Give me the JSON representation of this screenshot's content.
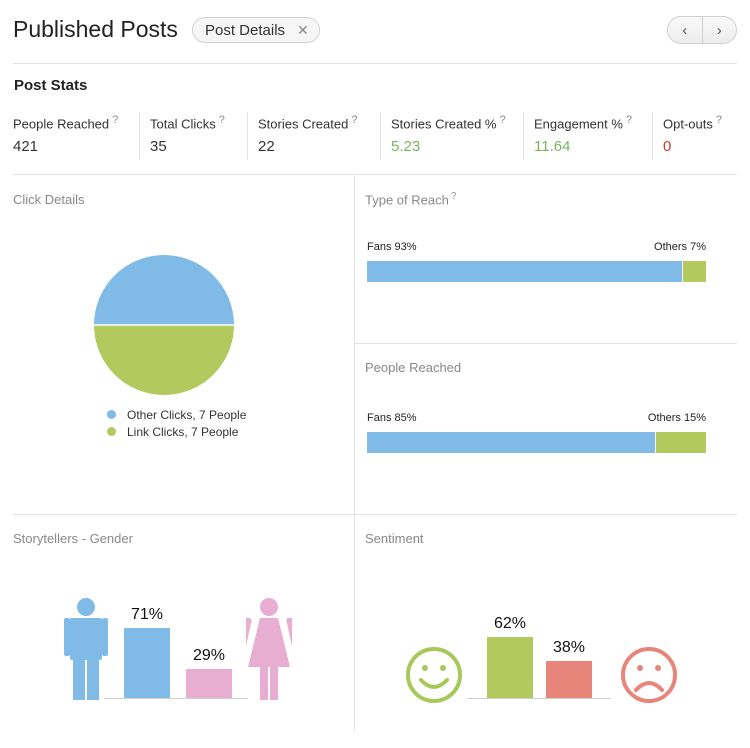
{
  "header": {
    "title": "Published Posts",
    "tag_label": "Post Details",
    "tag_close": "✕",
    "prev": "‹",
    "next": "›"
  },
  "stats": {
    "title": "Post Stats",
    "items": [
      {
        "label": "People Reached",
        "help": "?",
        "value": "421",
        "color": "#333333"
      },
      {
        "label": "Total Clicks",
        "help": "?",
        "value": "35",
        "color": "#333333"
      },
      {
        "label": "Stories Created",
        "help": "?",
        "value": "22",
        "color": "#333333"
      },
      {
        "label": "Stories Created %",
        "help": "?",
        "value": "5.23",
        "color": "#7ab55c"
      },
      {
        "label": "Engagement %",
        "help": "?",
        "value": "11.64",
        "color": "#7ab55c"
      },
      {
        "label": "Opt-outs",
        "help": "?",
        "value": "0",
        "color": "#cc3b22"
      }
    ]
  },
  "click_details": {
    "title": "Click Details",
    "legend": [
      {
        "label": "Other Clicks, 7 People",
        "color": "#7fbbe6"
      },
      {
        "label": "Link Clicks, 7 People",
        "color": "#b2c95e"
      }
    ]
  },
  "type_of_reach": {
    "title": "Type of Reach",
    "help": "?",
    "fans_label": "Fans 93%",
    "others_label": "Others 7%",
    "fans_fraction": 0.93
  },
  "people_reached": {
    "title": "People Reached",
    "fans_label": "Fans 85%",
    "others_label": "Others 15%",
    "fans_fraction": 0.85
  },
  "gender": {
    "title": "Storytellers - Gender",
    "male_label": "71%",
    "female_label": "29%",
    "male_value": 71,
    "female_value": 29
  },
  "sentiment": {
    "title": "Sentiment",
    "positive_label": "62%",
    "negative_label": "38%",
    "positive_value": 62,
    "negative_value": 38
  },
  "colors": {
    "blue": "#7fbbe6",
    "green": "#b2c95e",
    "pink": "#e8aed1",
    "red": "#e8857a",
    "happy": "#a6c95a",
    "sad": "#e8857a"
  },
  "chart_data": [
    {
      "type": "pie",
      "title": "Click Details",
      "categories": [
        "Other Clicks, 7 People",
        "Link Clicks, 7 People"
      ],
      "values": [
        7,
        7
      ]
    },
    {
      "type": "bar",
      "title": "Type of Reach",
      "categories": [
        "Fans",
        "Others"
      ],
      "values": [
        93,
        7
      ],
      "stacked": true
    },
    {
      "type": "bar",
      "title": "People Reached",
      "categories": [
        "Fans",
        "Others"
      ],
      "values": [
        85,
        15
      ],
      "stacked": true
    },
    {
      "type": "bar",
      "title": "Storytellers - Gender",
      "categories": [
        "",
        ""
      ],
      "values": [
        71,
        29
      ]
    },
    {
      "type": "bar",
      "title": "Sentiment",
      "categories": [
        "",
        ""
      ],
      "values": [
        62,
        38
      ]
    }
  ]
}
